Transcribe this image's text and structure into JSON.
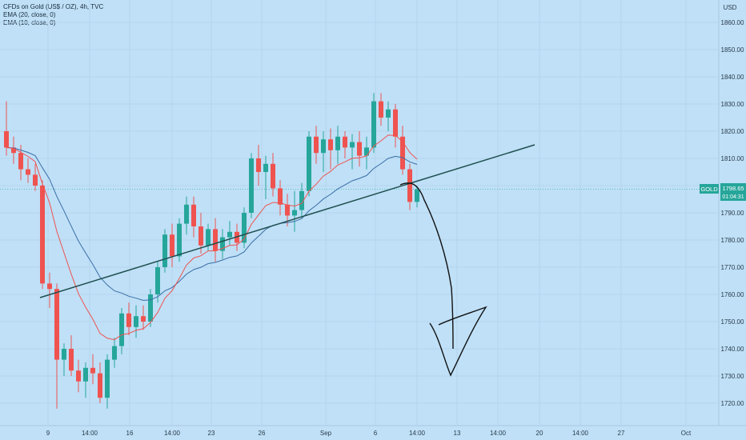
{
  "legend": {
    "title": "CFDs on Gold (US$ / OZ), 4h, TVC",
    "ema20": "EMA (20, close, 0)",
    "ema10": "EMA (10, close, 0)"
  },
  "chart_data": {
    "type": "candlestick",
    "symbol": "GOLD",
    "currency": "USD",
    "last_price": "1798.65",
    "countdown": "01:04:31",
    "y_ticks": [
      1720,
      1730,
      1740,
      1750,
      1760,
      1770,
      1780,
      1790,
      1800,
      1810,
      1820,
      1830,
      1840,
      1850,
      1860
    ],
    "y_tick_labels": [
      "1720.00",
      "1730.00",
      "1740.00",
      "1750.00",
      "1760.00",
      "1770.00",
      "1780.00",
      "1790.00",
      "1800.00",
      "1810.00",
      "1820.00",
      "1830.00",
      "1840.00",
      "1850.00",
      "1860.00"
    ],
    "ylim": [
      1711,
      1871
    ],
    "x_ticks": [
      "9",
      "14:00",
      "16",
      "14:00",
      "23",
      "26",
      "Sep",
      "6",
      "14:00",
      "13",
      "14:00",
      "20",
      "14:00",
      "27",
      "Oct"
    ],
    "colors": {
      "up": "#26a69a",
      "down": "#ef5350",
      "ema20": "#3a6ea5",
      "ema10": "#ef5350",
      "trendline": "#1f4f4f",
      "drawing": "#111111",
      "price_line": "#26a69a"
    },
    "candles": [
      [
        1820,
        1831,
        1811,
        1814
      ],
      [
        1814,
        1818,
        1808,
        1812
      ],
      [
        1812,
        1815,
        1802,
        1806
      ],
      [
        1806,
        1810,
        1801,
        1804
      ],
      [
        1804,
        1808,
        1798,
        1800
      ],
      [
        1800,
        1802,
        1762,
        1764
      ],
      [
        1764,
        1768,
        1755,
        1762
      ],
      [
        1762,
        1764,
        1718,
        1736
      ],
      [
        1736,
        1742,
        1730,
        1740
      ],
      [
        1740,
        1745,
        1730,
        1732
      ],
      [
        1732,
        1736,
        1724,
        1728
      ],
      [
        1728,
        1735,
        1722,
        1733
      ],
      [
        1733,
        1738,
        1727,
        1731
      ],
      [
        1731,
        1735,
        1720,
        1722
      ],
      [
        1722,
        1738,
        1718,
        1736
      ],
      [
        1736,
        1744,
        1733,
        1741
      ],
      [
        1741,
        1755,
        1738,
        1753
      ],
      [
        1753,
        1757,
        1745,
        1748
      ],
      [
        1748,
        1756,
        1744,
        1752
      ],
      [
        1752,
        1756,
        1747,
        1750
      ],
      [
        1750,
        1762,
        1748,
        1760
      ],
      [
        1760,
        1772,
        1757,
        1770
      ],
      [
        1770,
        1784,
        1768,
        1782
      ],
      [
        1782,
        1786,
        1770,
        1774
      ],
      [
        1774,
        1788,
        1772,
        1786
      ],
      [
        1786,
        1796,
        1782,
        1793
      ],
      [
        1793,
        1796,
        1781,
        1785
      ],
      [
        1785,
        1790,
        1775,
        1778
      ],
      [
        1778,
        1786,
        1776,
        1784
      ],
      [
        1784,
        1788,
        1772,
        1776
      ],
      [
        1776,
        1784,
        1773,
        1781
      ],
      [
        1781,
        1787,
        1778,
        1783
      ],
      [
        1783,
        1786,
        1776,
        1779
      ],
      [
        1779,
        1792,
        1777,
        1790
      ],
      [
        1790,
        1812,
        1788,
        1810
      ],
      [
        1810,
        1815,
        1800,
        1805
      ],
      [
        1805,
        1811,
        1795,
        1808
      ],
      [
        1808,
        1812,
        1796,
        1799
      ],
      [
        1799,
        1802,
        1789,
        1793
      ],
      [
        1793,
        1797,
        1785,
        1789
      ],
      [
        1789,
        1798,
        1783,
        1791
      ],
      [
        1791,
        1801,
        1788,
        1798
      ],
      [
        1798,
        1820,
        1796,
        1818
      ],
      [
        1818,
        1822,
        1808,
        1812
      ],
      [
        1812,
        1820,
        1805,
        1817
      ],
      [
        1817,
        1821,
        1806,
        1813
      ],
      [
        1813,
        1822,
        1808,
        1818
      ],
      [
        1818,
        1820,
        1810,
        1814
      ],
      [
        1814,
        1819,
        1806,
        1816
      ],
      [
        1816,
        1820,
        1807,
        1811
      ],
      [
        1811,
        1818,
        1806,
        1814
      ],
      [
        1814,
        1834,
        1812,
        1831
      ],
      [
        1831,
        1834,
        1822,
        1825
      ],
      [
        1825,
        1831,
        1820,
        1828
      ],
      [
        1828,
        1830,
        1814,
        1818
      ],
      [
        1818,
        1822,
        1804,
        1806
      ],
      [
        1806,
        1808,
        1791,
        1794
      ],
      [
        1794,
        1800,
        1792,
        1798.65
      ]
    ],
    "candle_x_start": 8,
    "candle_x_step": 9
  }
}
